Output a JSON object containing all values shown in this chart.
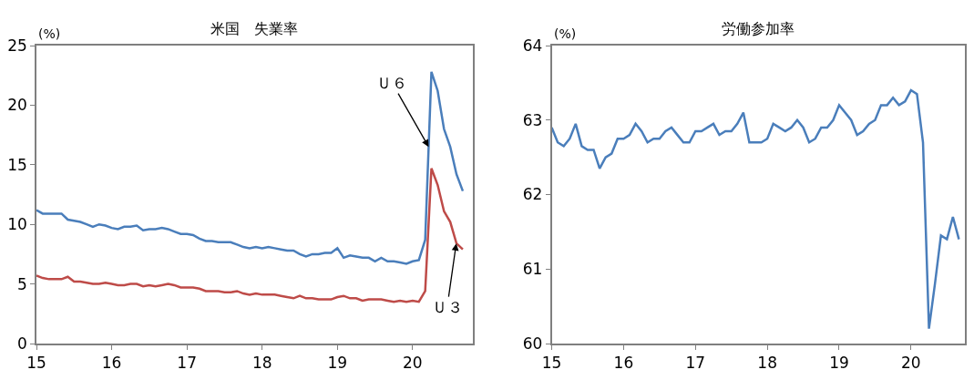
{
  "chart_data": [
    {
      "type": "line",
      "title": "米国　失業率",
      "ylabel": "(%)",
      "xlim": [
        15,
        20.8
      ],
      "xticks": [
        15,
        16,
        17,
        18,
        19,
        20
      ],
      "ylim": [
        0,
        25
      ],
      "yticks": [
        0,
        5,
        10,
        15,
        20,
        25
      ],
      "x": [
        15,
        15.083,
        15.167,
        15.25,
        15.333,
        15.417,
        15.5,
        15.583,
        15.667,
        15.75,
        15.833,
        15.917,
        16,
        16.083,
        16.167,
        16.25,
        16.333,
        16.417,
        16.5,
        16.583,
        16.667,
        16.75,
        16.833,
        16.917,
        17,
        17.083,
        17.167,
        17.25,
        17.333,
        17.417,
        17.5,
        17.583,
        17.667,
        17.75,
        17.833,
        17.917,
        18,
        18.083,
        18.167,
        18.25,
        18.333,
        18.417,
        18.5,
        18.583,
        18.667,
        18.75,
        18.833,
        18.917,
        19,
        19.083,
        19.167,
        19.25,
        19.333,
        19.417,
        19.5,
        19.583,
        19.667,
        19.75,
        19.833,
        19.917,
        20,
        20.083,
        20.167,
        20.25,
        20.333,
        20.417,
        20.5,
        20.583,
        20.667
      ],
      "series": [
        {
          "color": "#4a7ebb",
          "values": [
            11.2,
            10.9,
            10.9,
            10.9,
            10.9,
            10.4,
            10.3,
            10.2,
            10.0,
            9.8,
            10.0,
            9.9,
            9.7,
            9.6,
            9.8,
            9.8,
            9.9,
            9.5,
            9.6,
            9.6,
            9.7,
            9.6,
            9.4,
            9.2,
            9.2,
            9.1,
            8.8,
            8.6,
            8.6,
            8.5,
            8.5,
            8.5,
            8.3,
            8.1,
            8.0,
            8.1,
            8.0,
            8.1,
            8.0,
            7.9,
            7.8,
            7.8,
            7.5,
            7.3,
            7.5,
            7.5,
            7.6,
            7.6,
            8.0,
            7.2,
            7.4,
            7.3,
            7.2,
            7.2,
            6.9,
            7.2,
            6.9,
            6.9,
            6.8,
            6.7,
            6.9,
            7.0,
            8.7,
            22.8,
            21.2,
            18.0,
            16.5,
            14.2,
            12.8
          ]
        },
        {
          "color": "#be4b48",
          "values": [
            5.7,
            5.5,
            5.4,
            5.4,
            5.4,
            5.6,
            5.2,
            5.2,
            5.1,
            5.0,
            5.0,
            5.1,
            5.0,
            4.9,
            4.9,
            5.0,
            5.0,
            4.8,
            4.9,
            4.8,
            4.9,
            5.0,
            4.9,
            4.7,
            4.7,
            4.7,
            4.6,
            4.4,
            4.4,
            4.4,
            4.3,
            4.3,
            4.4,
            4.2,
            4.1,
            4.2,
            4.1,
            4.1,
            4.1,
            4.0,
            3.9,
            3.8,
            4.0,
            3.8,
            3.8,
            3.7,
            3.7,
            3.7,
            3.9,
            4.0,
            3.8,
            3.8,
            3.6,
            3.7,
            3.7,
            3.7,
            3.6,
            3.5,
            3.6,
            3.5,
            3.6,
            3.5,
            4.4,
            14.7,
            13.3,
            11.1,
            10.2,
            8.4,
            7.9
          ]
        }
      ],
      "annotations": [
        {
          "text": "Ｕ６",
          "x": 20.213,
          "y": 16.5
        },
        {
          "text": "Ｕ３",
          "x": 20.58,
          "y": 8.4
        }
      ]
    },
    {
      "type": "line",
      "title": "労働参加率",
      "ylabel": "(%)",
      "xlim": [
        15,
        20.75
      ],
      "xticks": [
        15,
        16,
        17,
        18,
        19,
        20
      ],
      "ylim": [
        60,
        64
      ],
      "yticks": [
        60,
        61,
        62,
        63,
        64
      ],
      "x": [
        15,
        15.083,
        15.167,
        15.25,
        15.333,
        15.417,
        15.5,
        15.583,
        15.667,
        15.75,
        15.833,
        15.917,
        16,
        16.083,
        16.167,
        16.25,
        16.333,
        16.417,
        16.5,
        16.583,
        16.667,
        16.75,
        16.833,
        16.917,
        17,
        17.083,
        17.167,
        17.25,
        17.333,
        17.417,
        17.5,
        17.583,
        17.667,
        17.75,
        17.833,
        17.917,
        18,
        18.083,
        18.167,
        18.25,
        18.333,
        18.417,
        18.5,
        18.583,
        18.667,
        18.75,
        18.833,
        18.917,
        19,
        19.083,
        19.167,
        19.25,
        19.333,
        19.417,
        19.5,
        19.583,
        19.667,
        19.75,
        19.833,
        19.917,
        20,
        20.083,
        20.167,
        20.25,
        20.333,
        20.417,
        20.5,
        20.583,
        20.667
      ],
      "series": [
        {
          "color": "#4a7ebb",
          "values": [
            62.9,
            62.7,
            62.65,
            62.75,
            62.95,
            62.65,
            62.6,
            62.6,
            62.35,
            62.5,
            62.55,
            62.75,
            62.75,
            62.8,
            62.95,
            62.85,
            62.7,
            62.75,
            62.75,
            62.85,
            62.9,
            62.8,
            62.7,
            62.7,
            62.85,
            62.85,
            62.9,
            62.95,
            62.8,
            62.85,
            62.85,
            62.95,
            63.1,
            62.7,
            62.7,
            62.7,
            62.75,
            62.95,
            62.9,
            62.85,
            62.9,
            63.0,
            62.9,
            62.7,
            62.75,
            62.9,
            62.9,
            63.0,
            63.2,
            63.1,
            63.0,
            62.8,
            62.85,
            62.95,
            63.0,
            63.2,
            63.2,
            63.3,
            63.2,
            63.25,
            63.4,
            63.35,
            62.7,
            60.2,
            60.8,
            61.45,
            61.4,
            61.7,
            61.4
          ]
        }
      ]
    }
  ]
}
